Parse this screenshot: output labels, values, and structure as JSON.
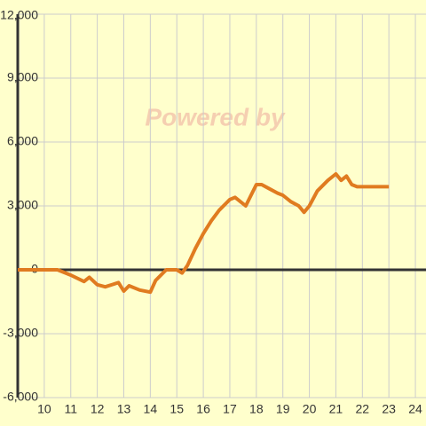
{
  "chart_data": {
    "type": "line",
    "watermark": "Powered by",
    "x": [
      9,
      10.5,
      11,
      11.5,
      11.7,
      12,
      12.3,
      12.8,
      13,
      13.2,
      13.6,
      14,
      14.2,
      14.6,
      15,
      15.2,
      15.4,
      15.7,
      16,
      16.3,
      16.6,
      17,
      17.2,
      17.6,
      18,
      18.2,
      18.5,
      18.8,
      19,
      19.3,
      19.6,
      19.8,
      20,
      20.3,
      20.7,
      21,
      21.2,
      21.4,
      21.6,
      21.8,
      22,
      22.5,
      23
    ],
    "series": [
      {
        "color": "#e07b20",
        "values": [
          0,
          0,
          -250,
          -550,
          -350,
          -700,
          -800,
          -600,
          -1000,
          -750,
          -950,
          -1050,
          -500,
          0,
          0,
          -150,
          200,
          1000,
          1700,
          2300,
          2800,
          3300,
          3400,
          3000,
          4000,
          4000,
          3800,
          3600,
          3500,
          3200,
          3000,
          2700,
          3000,
          3700,
          4200,
          4500,
          4200,
          4400,
          4000,
          3900,
          3900,
          3900,
          3900
        ]
      }
    ],
    "xlim": [
      9,
      24.4
    ],
    "xticks": [
      10,
      11,
      12,
      13,
      14,
      15,
      16,
      17,
      18,
      19,
      20,
      21,
      22,
      23,
      24
    ],
    "ylim": [
      -6000,
      12000
    ],
    "yticks": [
      {
        "value": -6000,
        "label": "-6,000"
      },
      {
        "value": -3000,
        "label": "-3,000"
      },
      0,
      {
        "value": 3000,
        "label": "3,000"
      },
      {
        "value": 6000,
        "label": "6,000"
      },
      {
        "value": 9000,
        "label": "9,000"
      },
      {
        "value": 12000,
        "label": "12,000"
      }
    ],
    "grid": true
  }
}
